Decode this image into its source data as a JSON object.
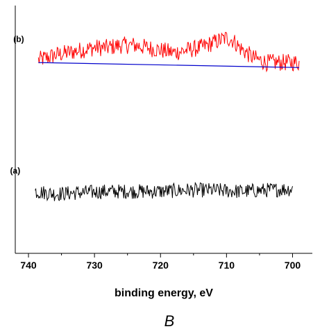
{
  "chart_data": {
    "type": "line",
    "xlabel": "binding energy, eV",
    "caption": "B",
    "xlim": [
      742,
      697
    ],
    "ylim": [
      0,
      1
    ],
    "x_reversed": true,
    "y_ticks_labeled": false,
    "x_ticks": [
      740,
      730,
      720,
      710,
      700
    ],
    "series": [
      {
        "name": "(b)",
        "color": "#ff0000",
        "x": [
          738.5,
          736,
          734,
          732,
          730,
          728,
          726,
          724,
          722,
          720,
          718,
          716,
          714,
          712,
          710,
          709,
          708,
          706,
          704,
          702,
          700,
          699
        ],
        "y": [
          0.78,
          0.8,
          0.81,
          0.82,
          0.83,
          0.83,
          0.84,
          0.84,
          0.83,
          0.82,
          0.81,
          0.82,
          0.83,
          0.85,
          0.87,
          0.86,
          0.83,
          0.79,
          0.77,
          0.77,
          0.77,
          0.77
        ]
      },
      {
        "name": "",
        "color": "#0000cc",
        "x": [
          738.5,
          699
        ],
        "y": [
          0.77,
          0.75
        ]
      },
      {
        "name": "(a)",
        "color": "#000000",
        "x": [
          739,
          736,
          732,
          728,
          724,
          720,
          716,
          712,
          708,
          704,
          700
        ],
        "y": [
          0.25,
          0.24,
          0.245,
          0.25,
          0.25,
          0.25,
          0.255,
          0.255,
          0.25,
          0.255,
          0.26
        ]
      }
    ]
  }
}
